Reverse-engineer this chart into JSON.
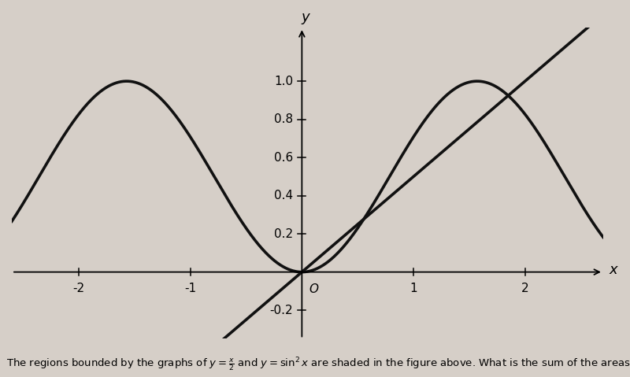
{
  "xlim": [
    -2.6,
    2.7
  ],
  "ylim": [
    -0.35,
    1.28
  ],
  "x_ticks": [
    -2,
    -1,
    1,
    2
  ],
  "y_ticks": [
    -0.2,
    0.2,
    0.4,
    0.6,
    0.8,
    1.0
  ],
  "background_color": "#d6cfc8",
  "curve_color": "#111111",
  "curve_linewidth": 2.6,
  "shade_color": "#b8b4b0",
  "shade_alpha": 0.85,
  "caption_fontsize": 9.5
}
